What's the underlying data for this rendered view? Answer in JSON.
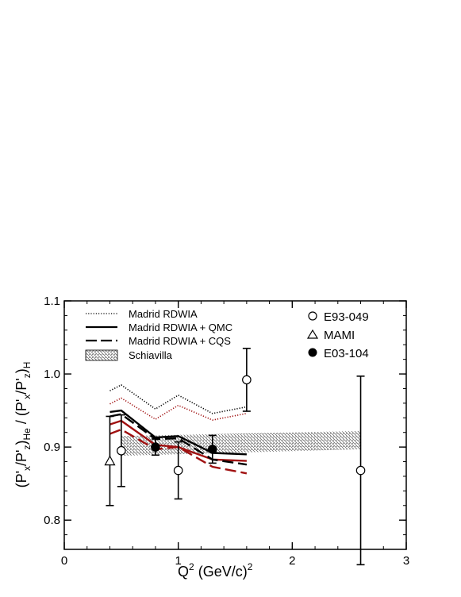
{
  "chart_data": {
    "type": "line",
    "xlabel_base": "Q",
    "xlabel_sup": "2",
    "xlabel_rest": " (GeV/c)",
    "xlabel_sup2": "2",
    "ylabel": "(P'x/P'z)He / (P'x/P'z)H",
    "xlim": [
      0,
      3
    ],
    "ylim": [
      0.76,
      1.1
    ],
    "x_ticks": [
      0,
      1,
      2,
      3
    ],
    "x_tick_labels": [
      "0",
      "1",
      "2",
      "3"
    ],
    "y_ticks": [
      0.8,
      0.9,
      1.0,
      1.1
    ],
    "y_tick_labels": [
      "0.8",
      "0.9",
      "1.0",
      "1.1"
    ],
    "grid": false,
    "legend_left": [
      {
        "label": "Madrid RDWIA",
        "style": "dotted"
      },
      {
        "label": "Madrid RDWIA + QMC",
        "style": "solid"
      },
      {
        "label": "Madrid RDWIA + CQS",
        "style": "dashed"
      },
      {
        "label": "Schiavilla",
        "style": "hatched"
      }
    ],
    "legend_right": [
      {
        "label": "E93-049",
        "marker": "open-circle"
      },
      {
        "label": "MAMI",
        "marker": "open-triangle"
      },
      {
        "label": "E03-104",
        "marker": "filled-circle"
      }
    ],
    "curves": [
      {
        "style": "dotted",
        "color": "#000000",
        "x": [
          0.4,
          0.5,
          0.8,
          1.0,
          1.3,
          1.6
        ],
        "y": [
          0.977,
          0.985,
          0.952,
          0.971,
          0.946,
          0.955
        ]
      },
      {
        "style": "dotted",
        "color": "#a01010",
        "x": [
          0.4,
          0.5,
          0.8,
          1.0,
          1.3,
          1.6
        ],
        "y": [
          0.959,
          0.967,
          0.938,
          0.957,
          0.937,
          0.946
        ]
      },
      {
        "style": "solid",
        "color": "#000000",
        "x": [
          0.4,
          0.5,
          0.8,
          1.0,
          1.3,
          1.6
        ],
        "y": [
          0.948,
          0.95,
          0.913,
          0.915,
          0.892,
          0.89
        ]
      },
      {
        "style": "solid",
        "color": "#a01010",
        "x": [
          0.4,
          0.5,
          0.8,
          1.0,
          1.3,
          1.6
        ],
        "y": [
          0.931,
          0.936,
          0.903,
          0.9,
          0.883,
          0.881
        ]
      },
      {
        "style": "dashed",
        "color": "#000000",
        "x": [
          0.4,
          0.5,
          0.8,
          1.0,
          1.3,
          1.6
        ],
        "y": [
          0.942,
          0.945,
          0.911,
          0.912,
          0.883,
          0.876
        ]
      },
      {
        "style": "dashed",
        "color": "#a01010",
        "x": [
          0.4,
          0.5,
          0.8,
          1.0,
          1.3,
          1.6
        ],
        "y": [
          0.918,
          0.924,
          0.897,
          0.9,
          0.873,
          0.864
        ]
      }
    ],
    "band": {
      "x": [
        0.5,
        2.6
      ],
      "lower": [
        0.888,
        0.897
      ],
      "upper": [
        0.915,
        0.922
      ]
    },
    "points": [
      {
        "series": "E93-049",
        "marker": "open-circle",
        "x": 0.5,
        "y": 0.895,
        "err": 0.049
      },
      {
        "series": "E93-049",
        "marker": "open-circle",
        "x": 1.0,
        "y": 0.868,
        "err": 0.039
      },
      {
        "series": "E93-049",
        "marker": "open-circle",
        "x": 1.6,
        "y": 0.992,
        "err": 0.043
      },
      {
        "series": "E93-049",
        "marker": "open-circle",
        "x": 2.6,
        "y": 0.868,
        "err": 0.129
      },
      {
        "series": "MAMI",
        "marker": "open-triangle",
        "x": 0.4,
        "y": 0.881,
        "err": 0.061
      },
      {
        "series": "E03-104",
        "marker": "filled-circle",
        "x": 0.8,
        "y": 0.9,
        "err": 0.011
      },
      {
        "series": "E03-104",
        "marker": "filled-circle",
        "x": 1.3,
        "y": 0.897,
        "err": 0.019
      }
    ]
  }
}
